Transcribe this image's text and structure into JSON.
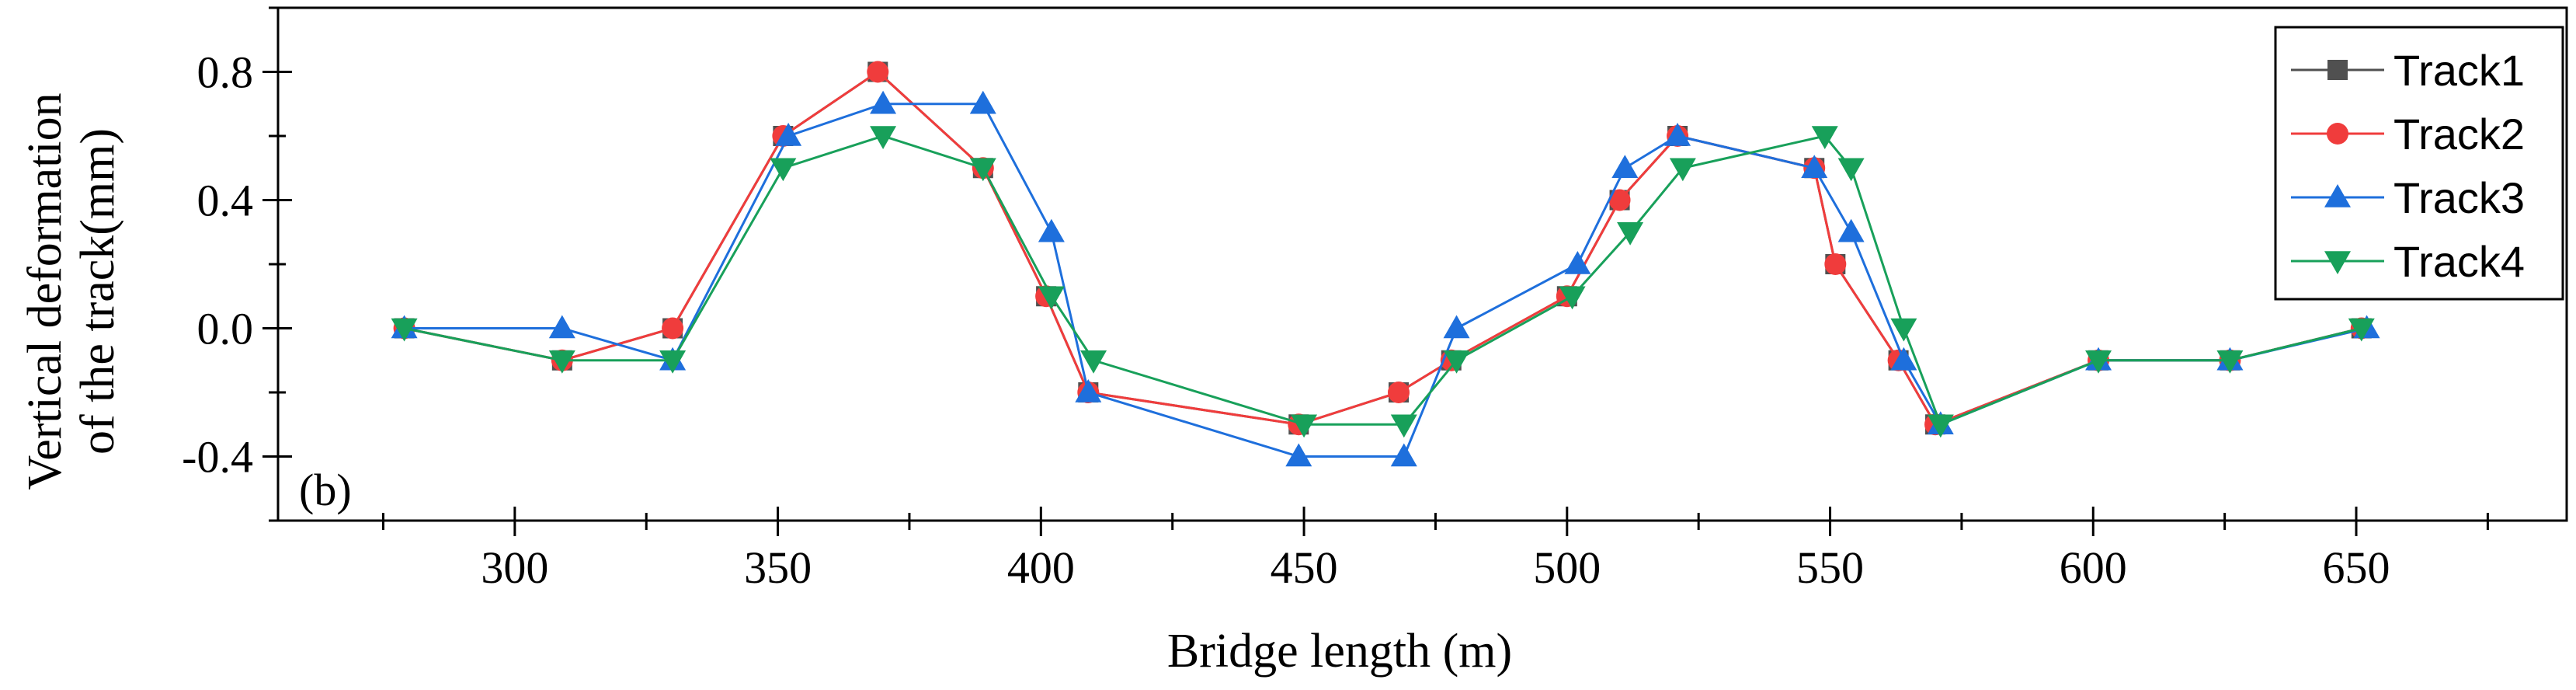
{
  "chart_data": {
    "type": "line",
    "title": "",
    "panel_label": "(b)",
    "xlabel": "Bridge length (m)",
    "ylabel_lines": [
      "Vertical deformation",
      "of the track(mm)"
    ],
    "xlim": [
      255,
      690
    ],
    "ylim": [
      -0.6,
      1.0
    ],
    "xticks": [
      300,
      350,
      400,
      450,
      500,
      550,
      600,
      650
    ],
    "xtick_labels": [
      "300",
      "350",
      "400",
      "450",
      "500",
      "550",
      "600",
      "650"
    ],
    "yticks": [
      -0.4,
      0.0,
      0.4,
      0.8
    ],
    "ytick_labels": [
      "-0.4",
      "0.0",
      "0.4",
      "0.8"
    ],
    "legend_position": "top-right",
    "series": [
      {
        "name": "Track1",
        "color": "#505050",
        "marker": "square",
        "x": [
          279,
          309,
          330,
          351,
          369,
          389,
          401,
          409,
          449,
          468,
          478,
          500,
          510,
          521,
          547,
          551,
          563,
          570,
          601,
          626,
          651
        ],
        "y": [
          0.0,
          -0.1,
          0.0,
          0.6,
          0.8,
          0.5,
          0.1,
          -0.2,
          -0.3,
          -0.2,
          -0.1,
          0.1,
          0.4,
          0.6,
          0.5,
          0.2,
          -0.1,
          -0.3,
          -0.1,
          -0.1,
          0.0
        ]
      },
      {
        "name": "Track2",
        "color": "#f03c3c",
        "marker": "circle",
        "x": [
          279,
          309,
          330,
          351,
          369,
          389,
          401,
          409,
          449,
          468,
          478,
          500,
          510,
          521,
          547,
          551,
          563,
          570,
          601,
          626,
          651
        ],
        "y": [
          0.0,
          -0.1,
          0.0,
          0.6,
          0.8,
          0.5,
          0.1,
          -0.2,
          -0.3,
          -0.2,
          -0.1,
          0.1,
          0.4,
          0.6,
          0.5,
          0.2,
          -0.1,
          -0.3,
          -0.1,
          -0.1,
          0.0
        ]
      },
      {
        "name": "Track3",
        "color": "#1e6fdc",
        "marker": "triangle-up",
        "x": [
          279,
          309,
          330,
          352,
          370,
          389,
          402,
          409,
          449,
          469,
          479,
          502,
          511,
          521,
          547,
          554,
          564,
          571,
          601,
          626,
          652
        ],
        "y": [
          0.0,
          0.0,
          -0.1,
          0.6,
          0.7,
          0.7,
          0.3,
          -0.2,
          -0.4,
          -0.4,
          0.0,
          0.2,
          0.5,
          0.6,
          0.5,
          0.3,
          -0.1,
          -0.3,
          -0.1,
          -0.1,
          0.0
        ]
      },
      {
        "name": "Track4",
        "color": "#18a05a",
        "marker": "triangle-down",
        "x": [
          279,
          309,
          330,
          351,
          370,
          389,
          402,
          410,
          450,
          469,
          479,
          501,
          512,
          522,
          549,
          554,
          564,
          571,
          601,
          626,
          651
        ],
        "y": [
          0.0,
          -0.1,
          -0.1,
          0.5,
          0.6,
          0.5,
          0.1,
          -0.1,
          -0.3,
          -0.3,
          -0.1,
          0.1,
          0.3,
          0.5,
          0.6,
          0.5,
          0.0,
          -0.3,
          -0.1,
          -0.1,
          0.0
        ]
      }
    ]
  }
}
